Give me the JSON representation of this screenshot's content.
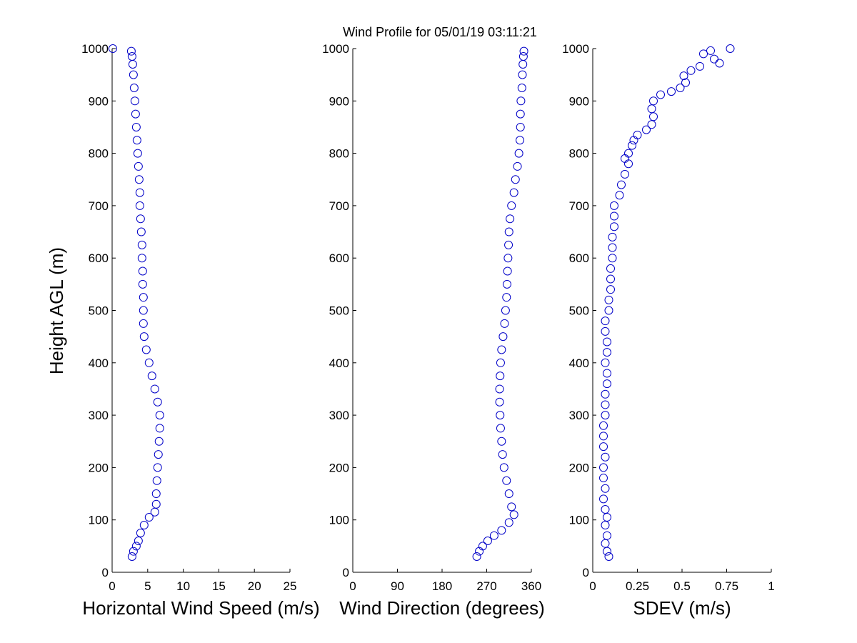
{
  "title": "Wind Profile for  05/01/19 03:11:21",
  "marker_color": "#0000c8",
  "chart_data": [
    {
      "type": "scatter",
      "xlabel": "Horizontal Wind Speed (m/s)",
      "ylabel": "Height AGL (m)",
      "xlim": [
        0,
        25
      ],
      "ylim": [
        0,
        1000
      ],
      "xticks": [
        "0",
        "5",
        "10",
        "15",
        "20",
        "25"
      ],
      "yticks": [
        "0",
        "100",
        "200",
        "300",
        "400",
        "500",
        "600",
        "700",
        "800",
        "900",
        "1000"
      ],
      "points": [
        [
          2.8,
          30
        ],
        [
          3.0,
          40
        ],
        [
          3.4,
          50
        ],
        [
          3.7,
          60
        ],
        [
          4.0,
          75
        ],
        [
          4.5,
          90
        ],
        [
          5.2,
          105
        ],
        [
          6.0,
          115
        ],
        [
          6.2,
          130
        ],
        [
          6.2,
          150
        ],
        [
          6.3,
          175
        ],
        [
          6.4,
          200
        ],
        [
          6.5,
          225
        ],
        [
          6.6,
          250
        ],
        [
          6.7,
          275
        ],
        [
          6.7,
          300
        ],
        [
          6.4,
          325
        ],
        [
          6.0,
          350
        ],
        [
          5.6,
          375
        ],
        [
          5.2,
          400
        ],
        [
          4.8,
          425
        ],
        [
          4.5,
          450
        ],
        [
          4.4,
          475
        ],
        [
          4.4,
          500
        ],
        [
          4.4,
          525
        ],
        [
          4.3,
          550
        ],
        [
          4.3,
          575
        ],
        [
          4.2,
          600
        ],
        [
          4.2,
          625
        ],
        [
          4.1,
          650
        ],
        [
          4.0,
          675
        ],
        [
          3.9,
          700
        ],
        [
          3.9,
          725
        ],
        [
          3.8,
          750
        ],
        [
          3.7,
          775
        ],
        [
          3.6,
          800
        ],
        [
          3.5,
          825
        ],
        [
          3.4,
          850
        ],
        [
          3.3,
          875
        ],
        [
          3.2,
          900
        ],
        [
          3.1,
          925
        ],
        [
          3.0,
          950
        ],
        [
          2.9,
          970
        ],
        [
          2.8,
          985
        ],
        [
          2.7,
          995
        ],
        [
          0.1,
          1000
        ]
      ]
    },
    {
      "type": "scatter",
      "xlabel": "Wind Direction (degrees)",
      "ylabel": "",
      "xlim": [
        0,
        360
      ],
      "ylim": [
        0,
        1000
      ],
      "xticks": [
        "0",
        "90",
        "180",
        "270",
        "360"
      ],
      "yticks": [
        "0",
        "100",
        "200",
        "300",
        "400",
        "500",
        "600",
        "700",
        "800",
        "900",
        "1000"
      ],
      "points": [
        [
          250,
          30
        ],
        [
          255,
          40
        ],
        [
          262,
          50
        ],
        [
          272,
          60
        ],
        [
          285,
          70
        ],
        [
          300,
          80
        ],
        [
          315,
          95
        ],
        [
          325,
          110
        ],
        [
          320,
          125
        ],
        [
          315,
          150
        ],
        [
          310,
          175
        ],
        [
          305,
          200
        ],
        [
          302,
          225
        ],
        [
          300,
          250
        ],
        [
          298,
          275
        ],
        [
          297,
          300
        ],
        [
          296,
          325
        ],
        [
          296,
          350
        ],
        [
          297,
          375
        ],
        [
          298,
          400
        ],
        [
          300,
          425
        ],
        [
          303,
          450
        ],
        [
          306,
          475
        ],
        [
          308,
          500
        ],
        [
          310,
          525
        ],
        [
          311,
          550
        ],
        [
          312,
          575
        ],
        [
          313,
          600
        ],
        [
          314,
          625
        ],
        [
          315,
          650
        ],
        [
          317,
          675
        ],
        [
          320,
          700
        ],
        [
          325,
          725
        ],
        [
          328,
          750
        ],
        [
          332,
          775
        ],
        [
          335,
          800
        ],
        [
          337,
          825
        ],
        [
          338,
          850
        ],
        [
          338,
          875
        ],
        [
          339,
          900
        ],
        [
          341,
          925
        ],
        [
          342,
          950
        ],
        [
          343,
          970
        ],
        [
          344,
          985
        ],
        [
          345,
          995
        ]
      ]
    },
    {
      "type": "scatter",
      "xlabel": "SDEV  (m/s)",
      "ylabel": "",
      "xlim": [
        0,
        1
      ],
      "ylim": [
        0,
        1000
      ],
      "xticks": [
        "0",
        "0.25",
        "0.5",
        "0.75",
        "1"
      ],
      "yticks": [
        "0",
        "100",
        "200",
        "300",
        "400",
        "500",
        "600",
        "700",
        "800",
        "900",
        "1000"
      ],
      "points": [
        [
          0.09,
          30
        ],
        [
          0.08,
          40
        ],
        [
          0.07,
          55
        ],
        [
          0.08,
          70
        ],
        [
          0.07,
          90
        ],
        [
          0.08,
          105
        ],
        [
          0.07,
          120
        ],
        [
          0.06,
          140
        ],
        [
          0.07,
          160
        ],
        [
          0.06,
          180
        ],
        [
          0.06,
          200
        ],
        [
          0.07,
          220
        ],
        [
          0.06,
          240
        ],
        [
          0.06,
          260
        ],
        [
          0.06,
          280
        ],
        [
          0.07,
          300
        ],
        [
          0.07,
          320
        ],
        [
          0.07,
          340
        ],
        [
          0.08,
          360
        ],
        [
          0.08,
          380
        ],
        [
          0.07,
          400
        ],
        [
          0.08,
          420
        ],
        [
          0.08,
          440
        ],
        [
          0.07,
          460
        ],
        [
          0.07,
          480
        ],
        [
          0.09,
          500
        ],
        [
          0.09,
          520
        ],
        [
          0.1,
          540
        ],
        [
          0.1,
          560
        ],
        [
          0.1,
          580
        ],
        [
          0.11,
          600
        ],
        [
          0.11,
          620
        ],
        [
          0.11,
          640
        ],
        [
          0.12,
          660
        ],
        [
          0.12,
          680
        ],
        [
          0.12,
          700
        ],
        [
          0.15,
          720
        ],
        [
          0.16,
          740
        ],
        [
          0.18,
          760
        ],
        [
          0.2,
          780
        ],
        [
          0.18,
          790
        ],
        [
          0.2,
          800
        ],
        [
          0.22,
          815
        ],
        [
          0.23,
          825
        ],
        [
          0.25,
          835
        ],
        [
          0.3,
          845
        ],
        [
          0.33,
          855
        ],
        [
          0.34,
          870
        ],
        [
          0.33,
          885
        ],
        [
          0.34,
          900
        ],
        [
          0.38,
          912
        ],
        [
          0.44,
          918
        ],
        [
          0.49,
          925
        ],
        [
          0.52,
          935
        ],
        [
          0.51,
          948
        ],
        [
          0.55,
          958
        ],
        [
          0.6,
          966
        ],
        [
          0.71,
          972
        ],
        [
          0.68,
          980
        ],
        [
          0.62,
          990
        ],
        [
          0.66,
          996
        ],
        [
          0.77,
          1000
        ]
      ]
    }
  ]
}
